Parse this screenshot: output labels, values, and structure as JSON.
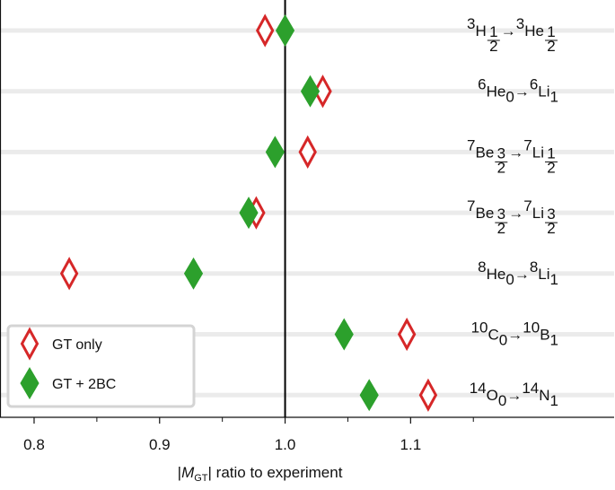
{
  "chart_data": {
    "type": "scatter",
    "xlim": [
      0.79,
      1.26
    ],
    "xticks": [
      0.8,
      0.9,
      1.0,
      1.1
    ],
    "xtick_labels": [
      "0.8",
      "0.9",
      "1.0",
      "1.1"
    ],
    "minor_ticks": [
      0.85,
      0.95,
      1.05,
      1.15
    ],
    "reference_line": 1.0,
    "xlabel": {
      "prefix": "|",
      "italic": "M",
      "sub": "GT",
      "suffix": "| ratio to experiment"
    },
    "grid": "horizontal row bands",
    "legend_position": "bottom-left",
    "categories": [
      {
        "pre": "3",
        "el": "H",
        "sub": "1/2",
        "pre2": "3",
        "el2": "He",
        "sub2": "1/2"
      },
      {
        "pre": "6",
        "el": "He",
        "sub": "0",
        "pre2": "6",
        "el2": "Li",
        "sub2": "1"
      },
      {
        "pre": "7",
        "el": "Be",
        "sub": "3/2",
        "pre2": "7",
        "el2": "Li",
        "sub2": "1/2"
      },
      {
        "pre": "7",
        "el": "Be",
        "sub": "3/2",
        "pre2": "7",
        "el2": "Li",
        "sub2": "3/2"
      },
      {
        "pre": "8",
        "el": "He",
        "sub": "0",
        "pre2": "8",
        "el2": "Li",
        "sub2": "1"
      },
      {
        "pre": "10",
        "el": "C",
        "sub": "0",
        "pre2": "10",
        "el2": "B",
        "sub2": "1"
      },
      {
        "pre": "14",
        "el": "O",
        "sub": "0",
        "pre2": "14",
        "el2": "N",
        "sub2": "1"
      }
    ],
    "arrow": "→",
    "series": [
      {
        "name": "GT only",
        "marker": "open-diamond",
        "color": "#d62728",
        "values": [
          0.984,
          1.03,
          1.018,
          0.977,
          0.828,
          1.097,
          1.114
        ]
      },
      {
        "name": "GT + 2BC",
        "marker": "filled-diamond",
        "color": "#2ca02c",
        "values": [
          1.0,
          1.02,
          0.992,
          0.971,
          0.927,
          1.047,
          1.067
        ]
      }
    ]
  }
}
